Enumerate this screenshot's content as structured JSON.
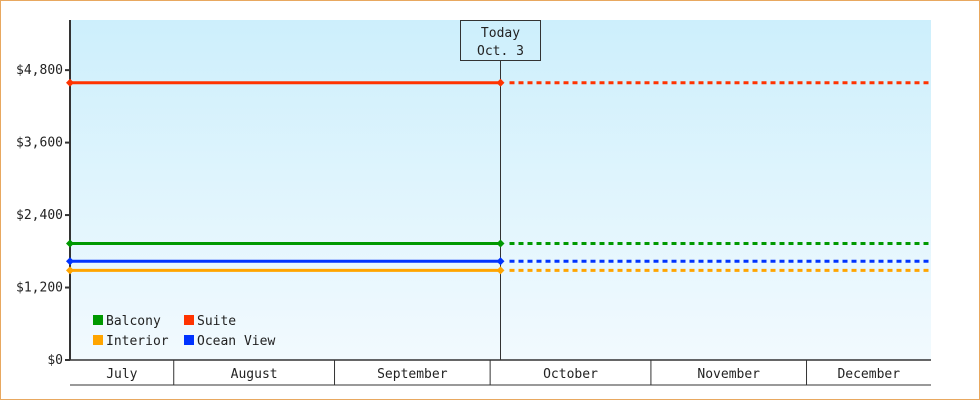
{
  "chart_data": {
    "type": "line",
    "y_ticks": [
      "$0",
      "$1,200",
      "$2,400",
      "$3,600",
      "$4,800"
    ],
    "y_tick_values": [
      0,
      1200,
      2400,
      3600,
      4800
    ],
    "ylim": [
      0,
      5630
    ],
    "xlim": [
      "07-12",
      "12-25"
    ],
    "months": [
      {
        "label": "July",
        "start": "07-12",
        "end": "08-01"
      },
      {
        "label": "August",
        "start": "08-01",
        "end": "09-01"
      },
      {
        "label": "September",
        "start": "09-01",
        "end": "10-01"
      },
      {
        "label": "October",
        "start": "10-01",
        "end": "11-01"
      },
      {
        "label": "November",
        "start": "11-01",
        "end": "12-01"
      },
      {
        "label": "December",
        "start": "12-01",
        "end": "12-25"
      }
    ],
    "today": {
      "title": "Today",
      "date_label": "Oct. 3",
      "date": "10-03"
    },
    "legend_position": "bottom-left",
    "series": [
      {
        "name": "Balcony",
        "color": "#009900",
        "value": 1930
      },
      {
        "name": "Suite",
        "color": "#ff3300",
        "value": 4590
      },
      {
        "name": "Interior",
        "color": "#ffa500",
        "value": 1485
      },
      {
        "name": "Ocean View",
        "color": "#0033ff",
        "value": 1635
      }
    ],
    "note": ""
  },
  "colors": {
    "bg_top": "#cdeffc",
    "bg_bottom": "#f2fafe",
    "frame": "#e8a860"
  }
}
